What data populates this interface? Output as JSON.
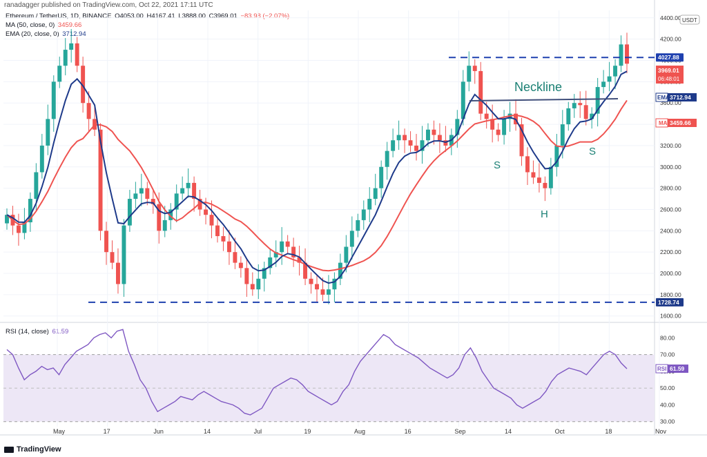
{
  "header": {
    "publisher": "ranadagger published on TradingView.com, Oct 22, 2021 17:11 UTC"
  },
  "legend": {
    "symbol": "Ethereum / TetherUS, 1D, BINANCE",
    "open": "O4053.00",
    "high": "H4167.41",
    "low": "L3888.00",
    "close": "C3969.01",
    "change": "−83.98 (−2.07%)",
    "ma_label": "MA (50, close, 0)",
    "ma_value": "3459.66",
    "ema_label": "EMA (20, close, 0)",
    "ema_value": "3712.94",
    "rsi_label": "RSI (14, close)",
    "rsi_value": "61.59"
  },
  "currency": "USDT",
  "footer": {
    "brand": "TradingView"
  },
  "colors": {
    "up": "#26a69a",
    "down": "#ef5350",
    "ema": "#1e3a8a",
    "ma": "#ef5350",
    "rsi": "#7e57c2",
    "rsi_band": "#ede7f6",
    "dashed": "#1e40af"
  },
  "chart_data": [
    {
      "type": "candlestick",
      "title": "Ethereum / TetherUS, 1D, BINANCE",
      "x_ticks": [
        "May",
        "17",
        "Jun",
        "14",
        "Jul",
        "19",
        "Aug",
        "16",
        "Sep",
        "14",
        "Oct",
        "18",
        "Nov"
      ],
      "y_ticks": [
        "1600.00",
        "1800.00",
        "2000.00",
        "2200.00",
        "2400.00",
        "2600.00",
        "2800.00",
        "3000.00",
        "3200.00",
        "3400.00",
        "3600.00",
        "3800.00",
        "4000.00",
        "4200.00",
        "4400.00"
      ],
      "ylim": [
        1540,
        4470
      ],
      "close_series": [
        2550,
        2450,
        2380,
        2480,
        2700,
        2950,
        3200,
        3450,
        3800,
        3950,
        4100,
        4160,
        3950,
        3600,
        3450,
        3350,
        2400,
        2200,
        2100,
        1900,
        2450,
        2700,
        2750,
        2800,
        2700,
        2650,
        2400,
        2500,
        2600,
        2750,
        2800,
        2850,
        2700,
        2600,
        2550,
        2450,
        2350,
        2300,
        2200,
        2100,
        2050,
        1900,
        1850,
        1950,
        2050,
        2150,
        2200,
        2300,
        2250,
        2150,
        2100,
        1950,
        1900,
        1850,
        1800,
        1850,
        1950,
        2100,
        2250,
        2400,
        2500,
        2600,
        2700,
        2800,
        3000,
        3150,
        3250,
        3300,
        3250,
        3200,
        3150,
        3250,
        3350,
        3300,
        3250,
        3200,
        3300,
        3450,
        3800,
        3950,
        3900,
        3500,
        3450,
        3350,
        3300,
        3450,
        3500,
        3400,
        3100,
        2950,
        2900,
        2850,
        2800,
        3000,
        3200,
        3400,
        3550,
        3600,
        3580,
        3450,
        3500,
        3750,
        3800,
        3850,
        3950,
        4150,
        3969.01
      ],
      "series": [
        {
          "name": "MA (50, close, 0)",
          "last": 3459.66
        },
        {
          "name": "EMA (20, close, 0)",
          "last": 3712.94
        }
      ],
      "price_labels": [
        {
          "text": "4027.88",
          "style": "dashed"
        },
        {
          "text": "3969.01",
          "style": "last"
        },
        {
          "text": "06:48:01",
          "style": "countdown"
        },
        {
          "text": "EMA",
          "value": "3712.94"
        },
        {
          "text": "MA",
          "value": "3459.66"
        },
        {
          "text": "1728.74",
          "style": "dashed"
        }
      ],
      "annotations": [
        "Neckline",
        "S",
        "H",
        "S"
      ],
      "levels": [
        4027.88,
        1728.74
      ]
    },
    {
      "type": "line",
      "title": "RSI (14, close)",
      "y_ticks": [
        "30.00",
        "40.00",
        "50.00",
        "60.00",
        "70.00",
        "80.00"
      ],
      "ylim": [
        27,
        88
      ],
      "band": [
        30,
        70
      ],
      "mid": 50,
      "values": [
        73,
        70,
        62,
        55,
        58,
        60,
        63,
        61,
        62,
        58,
        64,
        68,
        72,
        74,
        76,
        80,
        82,
        83,
        80,
        84,
        85,
        72,
        64,
        55,
        50,
        42,
        36,
        38,
        40,
        42,
        45,
        44,
        43,
        46,
        48,
        46,
        44,
        42,
        41,
        40,
        38,
        35,
        34,
        36,
        38,
        44,
        50,
        52,
        54,
        56,
        55,
        52,
        48,
        46,
        44,
        42,
        40,
        42,
        48,
        52,
        60,
        66,
        70,
        74,
        78,
        82,
        80,
        76,
        74,
        72,
        70,
        68,
        65,
        62,
        60,
        58,
        56,
        58,
        62,
        70,
        74,
        68,
        60,
        55,
        50,
        48,
        46,
        44,
        40,
        38,
        40,
        42,
        44,
        48,
        54,
        58,
        60,
        62,
        61,
        60,
        58,
        62,
        66,
        70,
        72,
        70,
        65,
        61.59
      ],
      "last_label": "61.59"
    }
  ]
}
